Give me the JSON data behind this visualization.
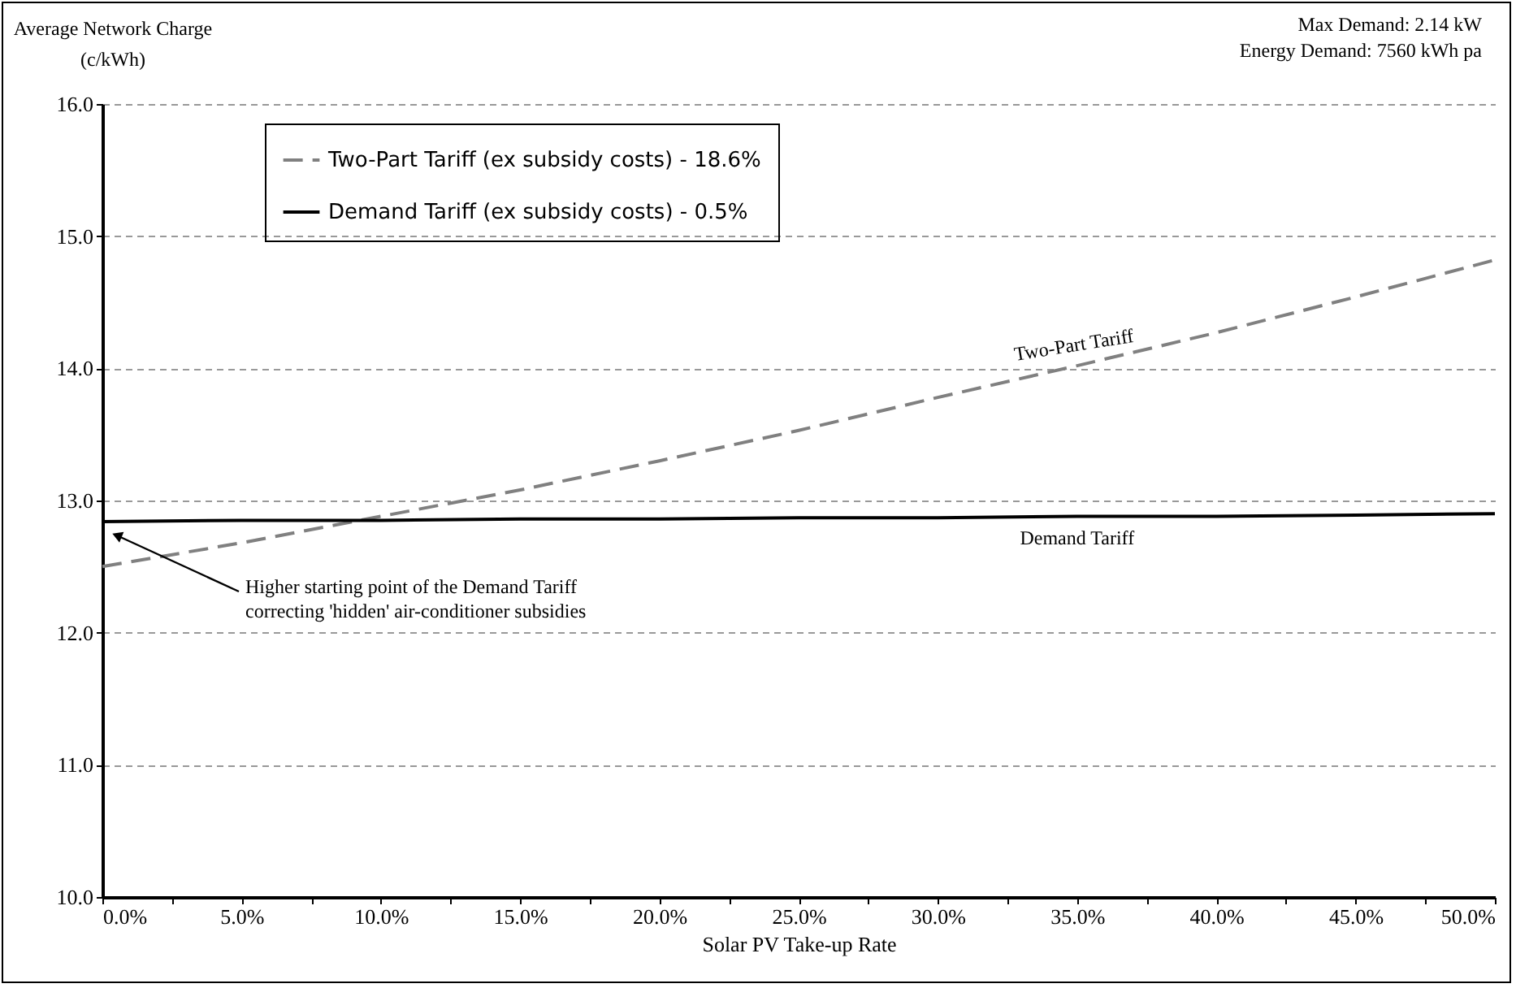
{
  "chart_data": {
    "type": "line",
    "xlabel": "Solar PV Take-up Rate",
    "ylabel": "Average Network Charge\n(c/kWh)",
    "x": [
      0,
      5,
      10,
      15,
      20,
      25,
      30,
      35,
      40,
      45,
      50
    ],
    "series": [
      {
        "name": "Two-Part Tariff (ex subsidy costs) - 18.6%",
        "color": "#808080",
        "line_style": "dashed",
        "values": [
          12.5,
          12.68,
          12.88,
          13.08,
          13.3,
          13.53,
          13.78,
          14.02,
          14.27,
          14.54,
          14.82
        ]
      },
      {
        "name": "Demand Tariff (ex subsidy costs) - 0.5%",
        "color": "#000000",
        "line_style": "solid",
        "values": [
          12.84,
          12.85,
          12.85,
          12.86,
          12.86,
          12.87,
          12.87,
          12.88,
          12.88,
          12.89,
          12.9
        ]
      }
    ],
    "xlim": [
      0,
      50
    ],
    "xticks": [
      {
        "value": 0,
        "label": "0.0%"
      },
      {
        "value": 2.5,
        "label": null
      },
      {
        "value": 5,
        "label": "5.0%"
      },
      {
        "value": 7.5,
        "label": null
      },
      {
        "value": 10,
        "label": "10.0%"
      },
      {
        "value": 12.5,
        "label": null
      },
      {
        "value": 15,
        "label": "15.0%"
      },
      {
        "value": 17.5,
        "label": null
      },
      {
        "value": 20,
        "label": "20.0%"
      },
      {
        "value": 22.5,
        "label": null
      },
      {
        "value": 25,
        "label": "25.0%"
      },
      {
        "value": 27.5,
        "label": null
      },
      {
        "value": 30,
        "label": "30.0%"
      },
      {
        "value": 32.5,
        "label": null
      },
      {
        "value": 35,
        "label": "35.0%"
      },
      {
        "value": 37.5,
        "label": null
      },
      {
        "value": 40,
        "label": "40.0%"
      },
      {
        "value": 42.5,
        "label": null
      },
      {
        "value": 45,
        "label": "45.0%"
      },
      {
        "value": 47.5,
        "label": null
      },
      {
        "value": 50,
        "label": "50.0%"
      }
    ],
    "ylim": [
      10,
      16
    ],
    "yticks": [
      {
        "value": 10,
        "label": "10.0"
      },
      {
        "value": 11,
        "label": "11.0"
      },
      {
        "value": 12,
        "label": "12.0"
      },
      {
        "value": 13,
        "label": "13.0"
      },
      {
        "value": 14,
        "label": "14.0"
      },
      {
        "value": 15,
        "label": "15.0"
      },
      {
        "value": 16,
        "label": "16.0"
      }
    ],
    "grid": "y",
    "legend": "top left",
    "marker": "none",
    "annotations": [
      "Max Demand: 2.14 kW",
      "Energy Demand: 7560 kWh pa",
      "Higher starting point of the Demand Tariff\ncorrecting 'hidden' air-conditioner subsidies",
      {
        "text": "Two-Part Tariff",
        "x": 35,
        "y": 14.02
      },
      {
        "text": "Demand Tariff",
        "x": 35,
        "y": 12.88
      }
    ]
  }
}
